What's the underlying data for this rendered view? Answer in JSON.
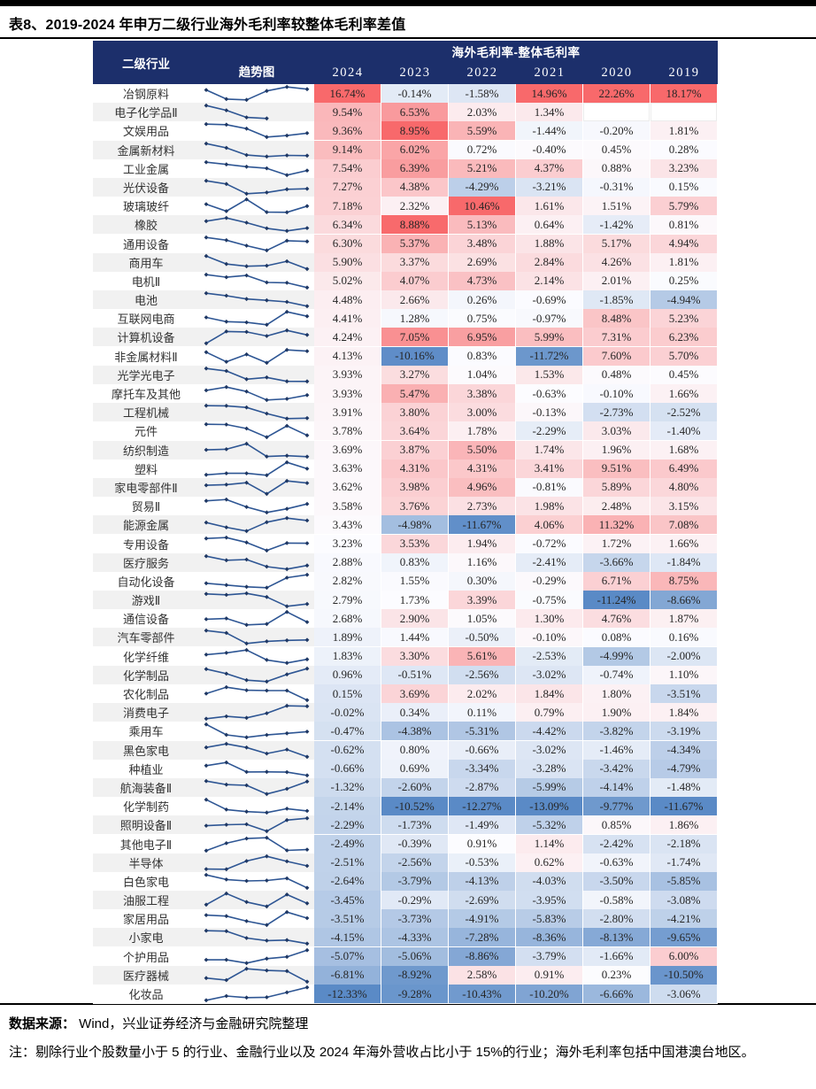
{
  "title": "表8、2019-2024 年申万二级行业海外毛利率较整体毛利率差值",
  "colors": {
    "header_bg": "#1C2F6B",
    "heat_max": "#F8696B",
    "heat_mid": "#FCFCFF",
    "heat_min": "#5A8AC6",
    "row_alt": "#F1F1F1",
    "spark_line": "#2E5694",
    "spark_marker": "#1F3864"
  },
  "footer": {
    "source_label": "数据来源：",
    "source_text": " Wind，兴业证券经济与金融研究院整理",
    "note": "注：剔除行业个股数量小于 5 的行业、金融行业以及 2024 年海外营收占比小于 15%的行业；海外毛利率包括中国港澳台地区。"
  },
  "chart_data": {
    "type": "heatmap",
    "title": "2019-2024 年申万二级行业海外毛利率较整体毛利率差值",
    "unit": "%",
    "header": {
      "industry": "二级行业",
      "trend": "趋势图",
      "group": "海外毛利率-整体毛利率"
    },
    "columns": [
      "2024",
      "2023",
      "2022",
      "2021",
      "2020",
      "2019"
    ],
    "color_scale": {
      "max": "#F8696B",
      "mid": "#FCFCFF",
      "min": "#5A8AC6",
      "midpoint": "per-column median"
    },
    "rows": [
      {
        "name": "冶钢原料",
        "values": [
          16.74,
          -0.14,
          -1.58,
          14.96,
          22.26,
          18.17
        ]
      },
      {
        "name": "电子化学品Ⅱ",
        "values": [
          9.54,
          6.53,
          2.03,
          1.34,
          null,
          null
        ]
      },
      {
        "name": "文娱用品",
        "values": [
          9.36,
          8.95,
          5.59,
          -1.44,
          -0.2,
          1.81
        ]
      },
      {
        "name": "金属新材料",
        "values": [
          9.14,
          6.02,
          0.72,
          -0.4,
          0.45,
          0.28
        ]
      },
      {
        "name": "工业金属",
        "values": [
          7.54,
          6.39,
          5.21,
          4.37,
          0.88,
          3.23
        ]
      },
      {
        "name": "光伏设备",
        "values": [
          7.27,
          4.38,
          -4.29,
          -3.21,
          -0.31,
          0.15
        ]
      },
      {
        "name": "玻璃玻纤",
        "values": [
          7.18,
          2.32,
          10.46,
          1.61,
          1.51,
          5.79
        ]
      },
      {
        "name": "橡胶",
        "values": [
          6.34,
          8.88,
          5.13,
          0.64,
          -1.42,
          0.81
        ]
      },
      {
        "name": "通用设备",
        "values": [
          6.3,
          5.37,
          3.48,
          1.88,
          5.17,
          4.94
        ]
      },
      {
        "name": "商用车",
        "values": [
          5.9,
          3.37,
          2.69,
          2.84,
          4.26,
          1.81
        ]
      },
      {
        "name": "电机Ⅱ",
        "values": [
          5.02,
          4.07,
          4.73,
          2.14,
          2.01,
          0.25
        ]
      },
      {
        "name": "电池",
        "values": [
          4.48,
          2.66,
          0.26,
          -0.69,
          -1.85,
          -4.94
        ]
      },
      {
        "name": "互联网电商",
        "values": [
          4.41,
          1.28,
          0.75,
          -0.97,
          8.48,
          5.23
        ]
      },
      {
        "name": "计算机设备",
        "values": [
          4.24,
          7.05,
          6.95,
          5.99,
          7.31,
          6.23
        ]
      },
      {
        "name": "非金属材料Ⅱ",
        "values": [
          4.13,
          -10.16,
          0.83,
          -11.72,
          7.6,
          5.7
        ]
      },
      {
        "name": "光学光电子",
        "values": [
          3.93,
          3.27,
          1.04,
          1.53,
          0.48,
          0.45
        ]
      },
      {
        "name": "摩托车及其他",
        "values": [
          3.93,
          5.47,
          3.38,
          -0.63,
          -0.1,
          1.66
        ]
      },
      {
        "name": "工程机械",
        "values": [
          3.91,
          3.8,
          3.0,
          -0.13,
          -2.73,
          -2.52
        ]
      },
      {
        "name": "元件",
        "values": [
          3.78,
          3.64,
          1.78,
          -2.29,
          3.03,
          -1.4
        ]
      },
      {
        "name": "纺织制造",
        "values": [
          3.69,
          3.87,
          5.5,
          1.74,
          1.96,
          1.68
        ]
      },
      {
        "name": "塑料",
        "values": [
          3.63,
          4.31,
          4.31,
          3.41,
          9.51,
          6.49
        ]
      },
      {
        "name": "家电零部件Ⅱ",
        "values": [
          3.62,
          3.98,
          4.96,
          -0.81,
          5.89,
          4.8
        ]
      },
      {
        "name": "贸易Ⅱ",
        "values": [
          3.58,
          3.76,
          2.73,
          1.98,
          2.48,
          3.15
        ]
      },
      {
        "name": "能源金属",
        "values": [
          3.43,
          -4.98,
          -11.67,
          4.06,
          11.32,
          7.08
        ]
      },
      {
        "name": "专用设备",
        "values": [
          3.23,
          3.53,
          1.94,
          -0.72,
          1.72,
          1.66
        ]
      },
      {
        "name": "医疗服务",
        "values": [
          2.88,
          0.83,
          1.16,
          -2.41,
          -3.66,
          -1.84
        ]
      },
      {
        "name": "自动化设备",
        "values": [
          2.82,
          1.55,
          0.3,
          -0.29,
          6.71,
          8.75
        ]
      },
      {
        "name": "游戏Ⅱ",
        "values": [
          2.79,
          1.73,
          3.39,
          -0.75,
          -11.24,
          -8.66
        ]
      },
      {
        "name": "通信设备",
        "values": [
          2.68,
          2.9,
          1.05,
          1.3,
          4.76,
          1.87
        ]
      },
      {
        "name": "汽车零部件",
        "values": [
          1.89,
          1.44,
          -0.5,
          -0.1,
          0.08,
          0.16
        ]
      },
      {
        "name": "化学纤维",
        "values": [
          1.83,
          3.3,
          5.61,
          -2.53,
          -4.99,
          -2.0
        ]
      },
      {
        "name": "化学制品",
        "values": [
          0.96,
          -0.51,
          -2.56,
          -3.02,
          -0.74,
          1.1
        ]
      },
      {
        "name": "农化制品",
        "values": [
          0.15,
          3.69,
          2.02,
          1.84,
          1.8,
          -3.51
        ]
      },
      {
        "name": "消费电子",
        "values": [
          -0.02,
          0.34,
          0.11,
          0.79,
          1.9,
          1.84
        ]
      },
      {
        "name": "乘用车",
        "values": [
          -0.47,
          -4.38,
          -5.31,
          -4.42,
          -3.82,
          -3.19
        ]
      },
      {
        "name": "黑色家电",
        "values": [
          -0.62,
          0.8,
          -0.66,
          -3.02,
          -1.46,
          -4.34
        ]
      },
      {
        "name": "种植业",
        "values": [
          -0.66,
          0.69,
          -3.34,
          -3.28,
          -3.42,
          -4.79
        ]
      },
      {
        "name": "航海装备Ⅱ",
        "values": [
          -1.32,
          -2.6,
          -2.87,
          -5.99,
          -4.14,
          -1.48
        ]
      },
      {
        "name": "化学制药",
        "values": [
          -2.14,
          -10.52,
          -12.27,
          -13.09,
          -9.77,
          -11.67
        ]
      },
      {
        "name": "照明设备Ⅱ",
        "values": [
          -2.29,
          -1.73,
          -1.49,
          -5.32,
          0.85,
          1.86
        ]
      },
      {
        "name": "其他电子Ⅱ",
        "values": [
          -2.49,
          -0.39,
          0.91,
          1.14,
          -2.42,
          -2.18
        ]
      },
      {
        "name": "半导体",
        "values": [
          -2.51,
          -2.56,
          -0.53,
          0.62,
          -0.63,
          -1.74
        ]
      },
      {
        "name": "白色家电",
        "values": [
          -2.64,
          -3.79,
          -4.13,
          -4.03,
          -3.5,
          -5.85
        ]
      },
      {
        "name": "油服工程",
        "values": [
          -3.45,
          -0.29,
          -2.69,
          -3.95,
          -0.58,
          -3.08
        ]
      },
      {
        "name": "家居用品",
        "values": [
          -3.51,
          -3.73,
          -4.91,
          -5.83,
          -2.8,
          -4.21
        ]
      },
      {
        "name": "小家电",
        "values": [
          -4.15,
          -4.33,
          -7.28,
          -8.36,
          -8.13,
          -9.65
        ]
      },
      {
        "name": "个护用品",
        "values": [
          -5.07,
          -5.06,
          -8.86,
          -3.79,
          -1.66,
          6.0
        ]
      },
      {
        "name": "医疗器械",
        "values": [
          -6.81,
          -8.92,
          2.58,
          0.91,
          0.23,
          -10.5
        ]
      },
      {
        "name": "化妆品",
        "values": [
          -12.33,
          -9.28,
          -10.43,
          -10.2,
          -6.66,
          -3.06
        ]
      }
    ]
  }
}
